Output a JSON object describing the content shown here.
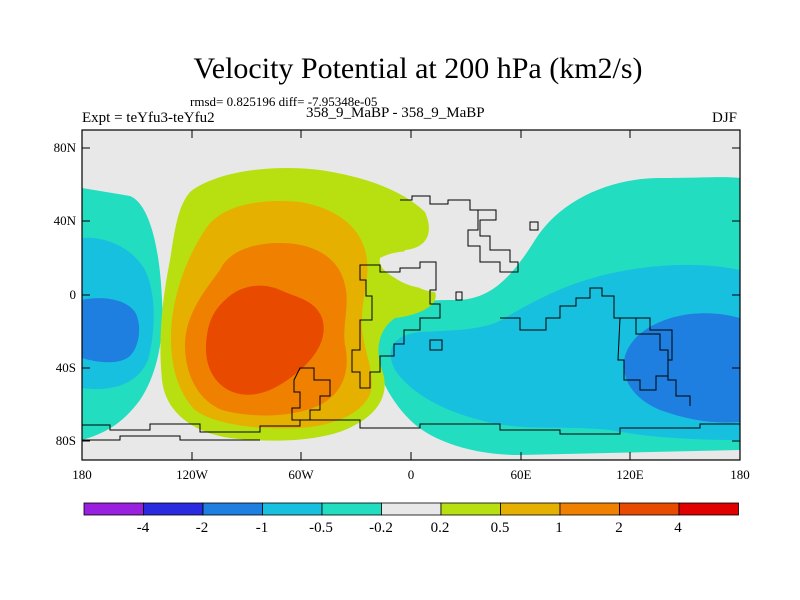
{
  "title": "Velocity Potential at 200 hPa (km2/s)",
  "stats": "rmsd= 0.825196 diff= -7.95348e-05",
  "expt": "Expt = teYfu3-teYfu2",
  "cases": "358_9_MaBP - 358_9_MaBP",
  "season": "DJF",
  "y_axis": {
    "ticks": [
      "80N",
      "40N",
      "0",
      "40S",
      "80S"
    ]
  },
  "x_axis": {
    "ticks": [
      "180",
      "120W",
      "60W",
      "0",
      "60E",
      "120E",
      "180"
    ]
  },
  "colorbar": {
    "labels": [
      "-4",
      "-2",
      "-1",
      "-0.5",
      "-0.2",
      "0.2",
      "0.5",
      "1",
      "2",
      "4"
    ],
    "colors": [
      "#9a20e0",
      "#2a2ae0",
      "#1e7fe0",
      "#18c0e0",
      "#22ddbf",
      "#e8e8e8",
      "#b8e010",
      "#e6b000",
      "#ef8000",
      "#e84a00",
      "#e00000"
    ]
  }
}
